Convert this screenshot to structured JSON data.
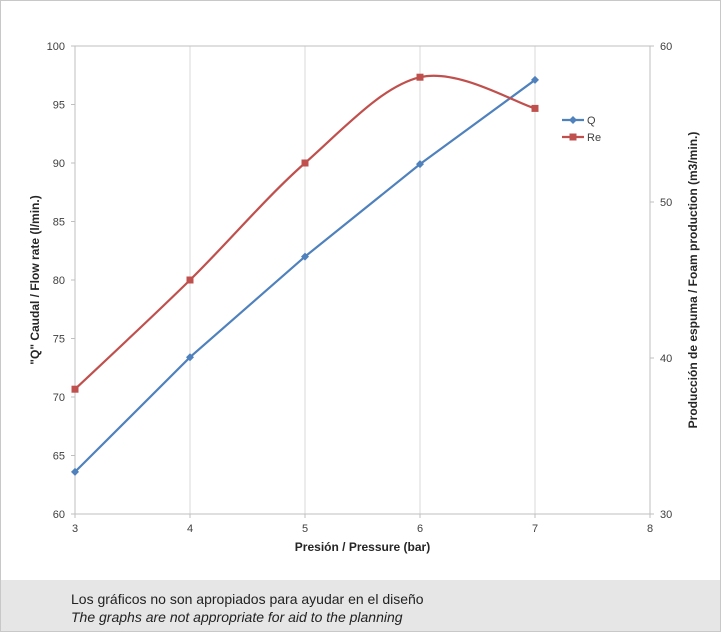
{
  "chart_data": {
    "type": "line",
    "x": [
      3,
      4,
      5,
      6,
      7
    ],
    "xlabel": "Presión / Pressure (bar)",
    "xlim": [
      3,
      8
    ],
    "xticks": [
      3,
      4,
      5,
      6,
      7,
      8
    ],
    "ylabel": "\"Q\" Caudal / Flow rate (l/min.)",
    "ylim": [
      60,
      100
    ],
    "yticks": [
      60,
      65,
      70,
      75,
      80,
      85,
      90,
      95,
      100
    ],
    "y2label": "Producción de espuma / Foam production (m3/min.)",
    "y2lim": [
      30,
      60
    ],
    "y2ticks": [
      30,
      40,
      50,
      60
    ],
    "grid": "vertical",
    "legend_position": "right",
    "series": [
      {
        "name": "Q",
        "axis": "left",
        "color": "#4f81bd",
        "marker": "diamond",
        "smooth": false,
        "values": [
          63.6,
          73.4,
          82.0,
          89.9,
          97.1
        ]
      },
      {
        "name": "Re",
        "axis": "right",
        "color": "#c0504d",
        "marker": "square",
        "smooth": true,
        "values": [
          38.0,
          45.0,
          52.5,
          58.0,
          56.0
        ]
      }
    ]
  },
  "note": {
    "line1": "Los gráficos no son apropiados para ayudar en el diseño",
    "line2": "The graphs are not appropriate for aid to the planning"
  }
}
